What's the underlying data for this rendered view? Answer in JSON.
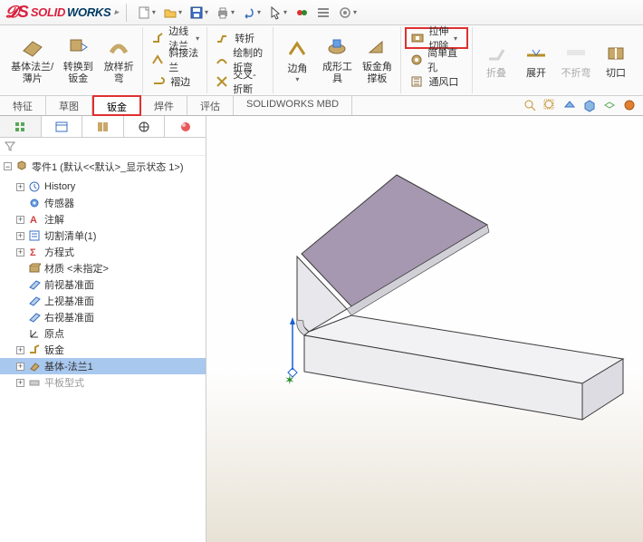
{
  "logo": {
    "brand1": "SOLID",
    "brand2": "WORKS"
  },
  "ribbon": {
    "large": [
      {
        "name": "base-flange",
        "label": "基体法兰/薄片"
      },
      {
        "name": "convert-sm",
        "label": "转换到钣金"
      },
      {
        "name": "lofted-bend",
        "label": "放样折弯"
      }
    ],
    "col1": [
      {
        "name": "edge-flange",
        "label": "边线法兰"
      },
      {
        "name": "miter-flange",
        "label": "斜接法兰"
      },
      {
        "name": "hem",
        "label": "褶边"
      }
    ],
    "col2": [
      {
        "name": "jog",
        "label": "转折"
      },
      {
        "name": "sketched-bend",
        "label": "绘制的折弯"
      },
      {
        "name": "cross-break",
        "label": "交叉-折断"
      }
    ],
    "large2": [
      {
        "name": "edges",
        "label": "边角"
      },
      {
        "name": "forming-tool",
        "label": "成形工具"
      },
      {
        "name": "gusset",
        "label": "钣金角撑板"
      }
    ],
    "col3": [
      {
        "name": "extruded-cut",
        "label": "拉伸切除",
        "highlight": true
      },
      {
        "name": "simple-hole",
        "label": "简单直孔"
      },
      {
        "name": "vent",
        "label": "通风口"
      }
    ],
    "large3": [
      {
        "name": "fold",
        "label": "折叠",
        "disabled": true
      },
      {
        "name": "unfold",
        "label": "展开"
      },
      {
        "name": "no-bends",
        "label": "不折弯",
        "disabled": true
      },
      {
        "name": "rip",
        "label": "切口"
      }
    ]
  },
  "tabs": {
    "items": [
      {
        "name": "features",
        "label": "特征"
      },
      {
        "name": "sketch",
        "label": "草图"
      },
      {
        "name": "sheet-metal",
        "label": "钣金",
        "active": true,
        "highlight": true
      },
      {
        "name": "weldments",
        "label": "焊件"
      },
      {
        "name": "evaluate",
        "label": "评估"
      },
      {
        "name": "mbd",
        "label": "SOLIDWORKS MBD"
      }
    ]
  },
  "tree": {
    "root": "零件1  (默认<<默认>_显示状态 1>)",
    "items": [
      {
        "name": "history",
        "label": "History",
        "exp": "+",
        "icon": "history"
      },
      {
        "name": "sensors",
        "label": "传感器",
        "icon": "sensor"
      },
      {
        "name": "annotations",
        "label": "注解",
        "exp": "+",
        "icon": "annot"
      },
      {
        "name": "cutlist",
        "label": "切割清单(1)",
        "exp": "+",
        "icon": "cutlist"
      },
      {
        "name": "equations",
        "label": "方程式",
        "exp": "+",
        "icon": "eq"
      },
      {
        "name": "material",
        "label": "材质 <未指定>",
        "icon": "mat"
      },
      {
        "name": "front-plane",
        "label": "前视基准面",
        "icon": "plane"
      },
      {
        "name": "top-plane",
        "label": "上视基准面",
        "icon": "plane"
      },
      {
        "name": "right-plane",
        "label": "右视基准面",
        "icon": "plane"
      },
      {
        "name": "origin",
        "label": "原点",
        "icon": "origin"
      },
      {
        "name": "sheetmetal-feat",
        "label": "钣金",
        "exp": "+",
        "icon": "sm"
      },
      {
        "name": "base-flange-feat",
        "label": "基体-法兰1",
        "exp": "+",
        "icon": "flange",
        "selected": true
      },
      {
        "name": "flat-pattern",
        "label": "平板型式",
        "exp": "+",
        "icon": "flat",
        "grey": true
      }
    ]
  },
  "colors": {
    "part_face": "#a698b0",
    "part_edge": "#3a3a3a",
    "part_light": "#f2f2f4",
    "axis_blue": "#1a5fd6",
    "axis_green": "#2a8a2a",
    "highlight": "#e03030"
  }
}
